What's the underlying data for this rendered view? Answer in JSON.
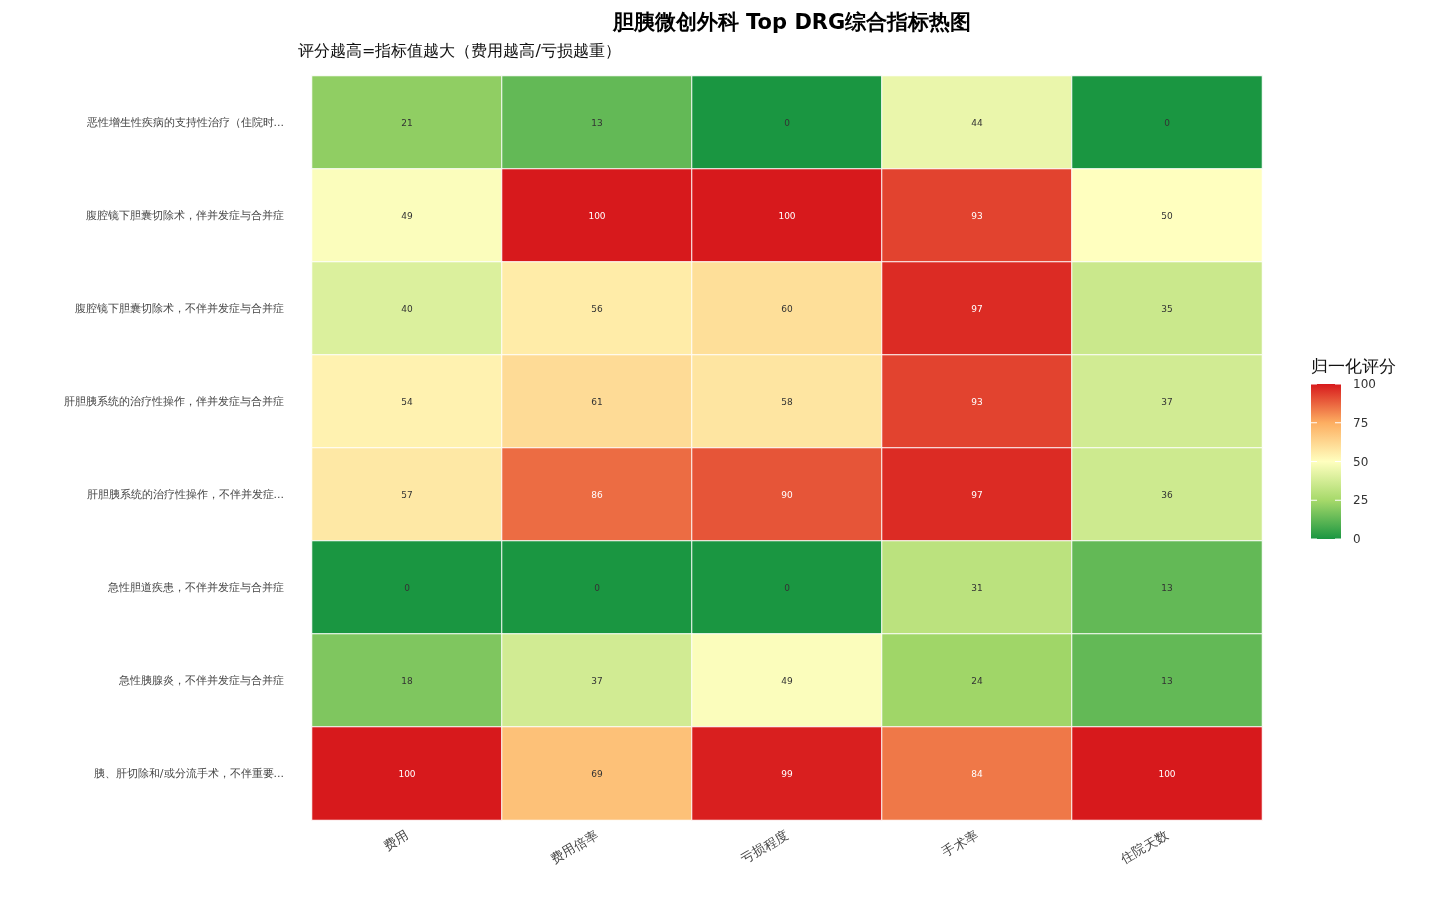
{
  "chart_data": {
    "type": "heatmap",
    "title": "胆胰微创外科 Top DRG综合指标热图",
    "subtitle": "评分越高=指标值越大（费用越高/亏损越重）",
    "categories": [
      "费用",
      "费用倍率",
      "亏损程度",
      "手术率",
      "住院天数"
    ],
    "y_categories": [
      "恶性增生性疾病的支持性治疗（住院时...",
      "腹腔镜下胆囊切除术，伴并发症与合并症",
      "腹腔镜下胆囊切除术，不伴并发症与合并症",
      "肝胆胰系统的治疗性操作，伴并发症与合并症",
      "肝胆胰系统的治疗性操作，不伴并发症...",
      "急性胆道疾患，不伴并发症与合并症",
      "急性胰腺炎，不伴并发症与合并症",
      "胰、肝切除和/或分流手术，不伴重要..."
    ],
    "cells": [
      [
        21,
        13,
        0,
        44,
        0
      ],
      [
        49,
        100,
        100,
        93,
        50
      ],
      [
        40,
        56,
        60,
        97,
        35
      ],
      [
        54,
        61,
        58,
        93,
        37
      ],
      [
        57,
        86,
        90,
        97,
        36
      ],
      [
        0,
        0,
        0,
        31,
        13
      ],
      [
        18,
        37,
        49,
        24,
        13
      ],
      [
        100,
        69,
        99,
        84,
        100
      ]
    ],
    "data_labels": true,
    "clabel": "归一化评分",
    "clim": [
      0,
      100
    ],
    "cticks": [
      0,
      25,
      50,
      75,
      100
    ]
  }
}
